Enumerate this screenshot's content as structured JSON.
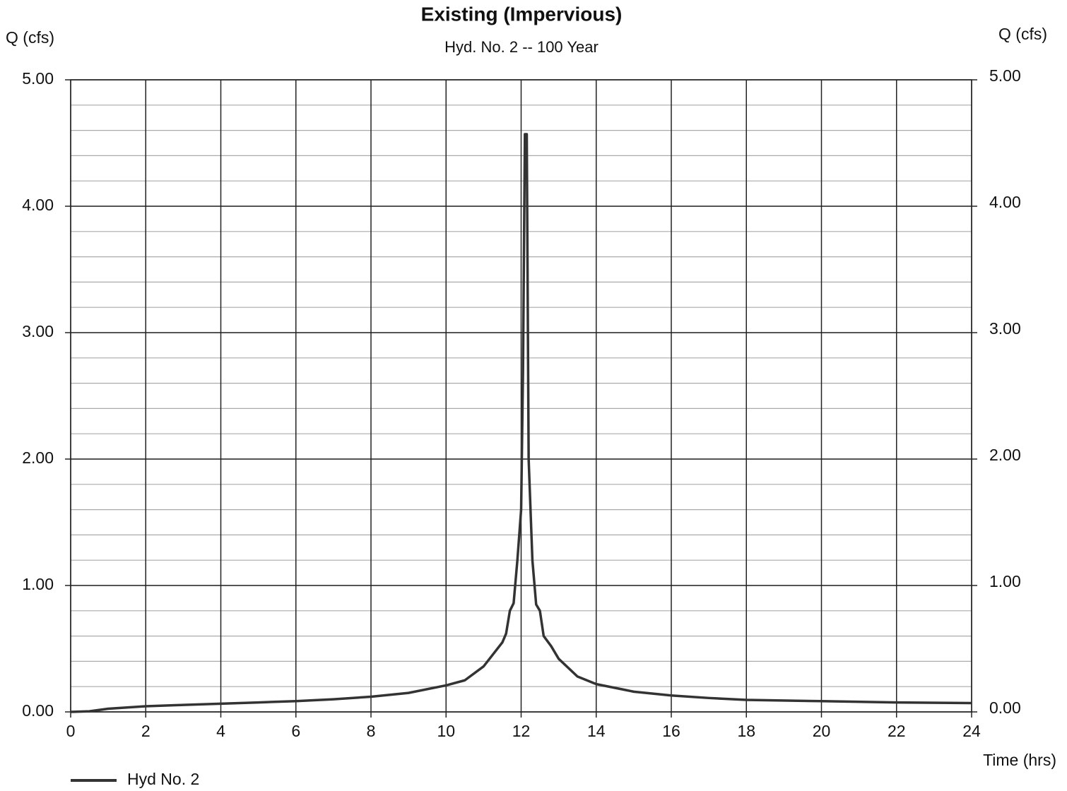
{
  "chart_data": {
    "type": "line",
    "title": "Existing (Impervious)",
    "subtitle": "Hyd. No. 2 -- 100 Year",
    "y_label": "Q (cfs)",
    "y2_label": "Q (cfs)",
    "x_label": "Time (hrs)",
    "x": [
      0,
      0.5,
      1,
      2,
      3,
      4,
      5,
      6,
      7,
      8,
      9,
      10,
      10.5,
      11,
      11.5,
      11.6,
      11.7,
      11.8,
      11.9,
      12,
      12.05,
      12.1,
      12.15,
      12.2,
      12.3,
      12.4,
      12.5,
      12.6,
      12.8,
      13,
      13.5,
      14,
      15,
      16,
      17,
      18,
      20,
      22,
      24
    ],
    "series": [
      {
        "name": "Hyd No. 2",
        "color": "#333333",
        "values": [
          0,
          0.005,
          0.025,
          0.045,
          0.055,
          0.065,
          0.075,
          0.085,
          0.1,
          0.12,
          0.15,
          0.21,
          0.25,
          0.36,
          0.55,
          0.62,
          0.8,
          0.86,
          1.2,
          1.6,
          2.7,
          4.57,
          4.57,
          2.0,
          1.2,
          0.85,
          0.8,
          0.6,
          0.52,
          0.42,
          0.28,
          0.22,
          0.16,
          0.13,
          0.11,
          0.095,
          0.085,
          0.075,
          0.07
        ]
      }
    ],
    "xlim": [
      0,
      24
    ],
    "xticks": [
      0,
      2,
      4,
      6,
      8,
      10,
      12,
      14,
      16,
      18,
      20,
      22,
      24
    ],
    "ylim": [
      0,
      5
    ],
    "yticks": [
      {
        "value": 0,
        "label": "0.00"
      },
      {
        "value": 1,
        "label": "1.00"
      },
      {
        "value": 2,
        "label": "2.00"
      },
      {
        "value": 3,
        "label": "3.00"
      },
      {
        "value": 4,
        "label": "4.00"
      },
      {
        "value": 5,
        "label": "5.00"
      }
    ],
    "y2lim": [
      0,
      5
    ],
    "y2ticks": [
      {
        "value": 0,
        "label": "0.00"
      },
      {
        "value": 1,
        "label": "1.00"
      },
      {
        "value": 2,
        "label": "2.00"
      },
      {
        "value": 3,
        "label": "3.00"
      },
      {
        "value": 4,
        "label": "4.00"
      },
      {
        "value": 5,
        "label": "5.00"
      }
    ],
    "grid": true,
    "minor_grid": true
  }
}
